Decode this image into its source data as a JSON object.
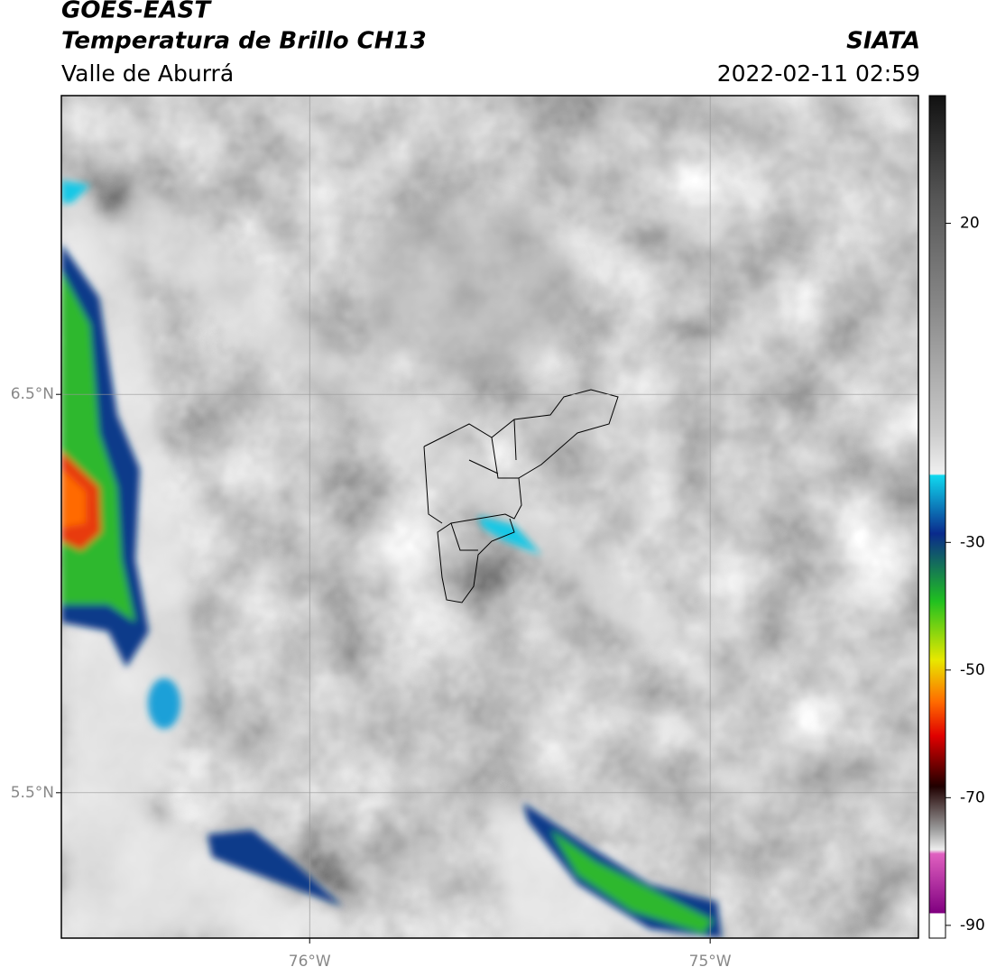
{
  "header": {
    "title": "GOES-EAST",
    "subtitle": "Temperatura de Brillo CH13",
    "region": "Valle de Aburrá",
    "source": "SIATA",
    "datetime": "2022-02-11 02:59"
  },
  "map": {
    "latlim": [
      5.135,
      7.25
    ],
    "lonlim": [
      -76.62,
      -74.48
    ],
    "latticks": [
      {
        "value": 6.5,
        "label": "6.5°N"
      },
      {
        "value": 5.5,
        "label": "5.5°N"
      }
    ],
    "lonticks": [
      {
        "value": -76,
        "label": "76°W"
      },
      {
        "value": -75,
        "label": "75°W"
      }
    ]
  },
  "colorbar": {
    "lim": [
      -92,
      40
    ],
    "ticks": [
      20,
      -30,
      -50,
      -70,
      -90
    ]
  }
}
